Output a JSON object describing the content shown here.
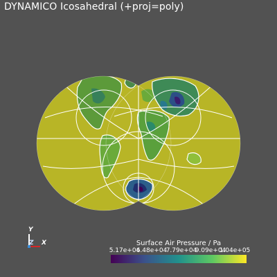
{
  "window": {
    "title": "DYNAMICO Icosahedral (+proj=poly)"
  },
  "colorbar": {
    "title": "Surface Air Pressure / Pa",
    "ticks": [
      "5.17e+04",
      "6.48e+04",
      "7.79e+04",
      "9.09e+04",
      "1.04e+05"
    ],
    "colors": [
      "#440154",
      "#3b528b",
      "#21918c",
      "#5ec962",
      "#fde725"
    ]
  },
  "axes": {
    "x": "X",
    "y": "Y",
    "z": "Z"
  },
  "colors": {
    "background": "#525252",
    "ocean": "#b8b526",
    "coastline": "#ffffff"
  }
}
